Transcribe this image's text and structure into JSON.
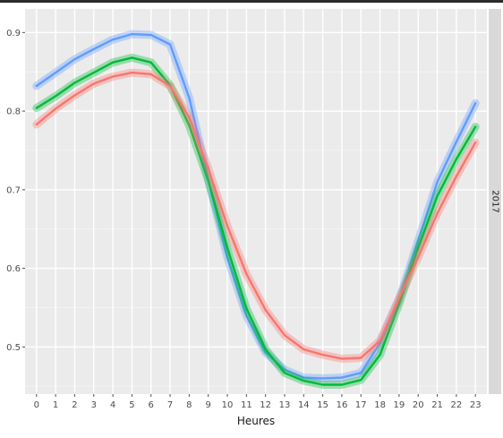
{
  "chart_data": {
    "type": "line",
    "xlabel": "Heures",
    "ylabel": "",
    "facet_label": "2017",
    "x": [
      0,
      1,
      2,
      3,
      4,
      5,
      6,
      7,
      8,
      9,
      10,
      11,
      12,
      13,
      14,
      15,
      16,
      17,
      18,
      19,
      20,
      21,
      22,
      23
    ],
    "xlim": [
      -0.6,
      23.6
    ],
    "ylim": [
      0.44,
      0.93
    ],
    "y_ticks": [
      0.5,
      0.6,
      0.7,
      0.8,
      0.9
    ],
    "y_tick_labels": [
      "0.5",
      "0.6",
      "0.7",
      "0.8",
      "0.9"
    ],
    "grid": true,
    "background": "#ebebeb",
    "series": [
      {
        "color": "#619cff",
        "values": [
          0.832,
          0.849,
          0.866,
          0.879,
          0.891,
          0.898,
          0.897,
          0.885,
          0.817,
          0.713,
          0.614,
          0.54,
          0.493,
          0.471,
          0.461,
          0.46,
          0.461,
          0.467,
          0.505,
          0.56,
          0.635,
          0.71,
          0.761,
          0.81
        ]
      },
      {
        "color": "#00ba38",
        "values": [
          0.804,
          0.819,
          0.836,
          0.849,
          0.862,
          0.868,
          0.862,
          0.833,
          0.782,
          0.712,
          0.626,
          0.549,
          0.497,
          0.467,
          0.457,
          0.452,
          0.452,
          0.458,
          0.49,
          0.555,
          0.626,
          0.692,
          0.739,
          0.78
        ]
      },
      {
        "color": "#f8766d",
        "values": [
          0.783,
          0.803,
          0.82,
          0.835,
          0.844,
          0.849,
          0.847,
          0.832,
          0.792,
          0.727,
          0.654,
          0.593,
          0.547,
          0.515,
          0.497,
          0.49,
          0.485,
          0.486,
          0.508,
          0.562,
          0.614,
          0.67,
          0.717,
          0.76
        ]
      }
    ]
  }
}
